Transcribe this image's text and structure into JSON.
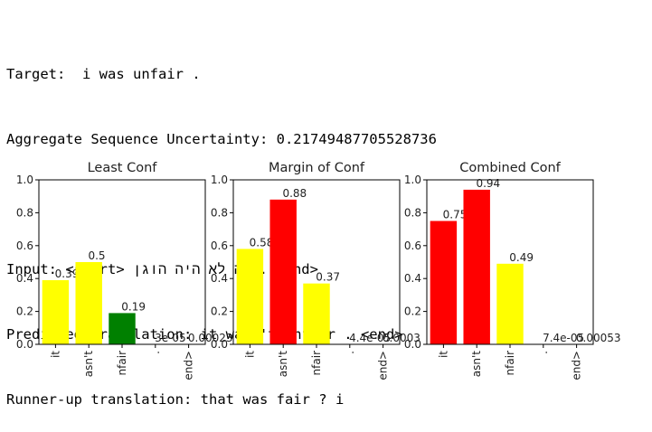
{
  "text_output": {
    "target_label": "Target:",
    "target": "i was unfair .",
    "uncertainty_label": "Aggregate Sequence Uncertainty:",
    "uncertainty": "0.21749487705528736",
    "input_label": "Input:",
    "input": "<start> זה לא היה הוגן . <end>",
    "predicted_label": "Predicted translation:",
    "predicted": "it wasn't unfair . <end>",
    "runnerup_label": "Runner-up translation:",
    "runnerup": "that was fair ? i"
  },
  "chart_data": [
    {
      "type": "bar",
      "title": "Least Conf",
      "categories": [
        "it",
        "asn't",
        "nfair",
        ".",
        "end>"
      ],
      "values": [
        0.39,
        0.5,
        0.19,
        3e-05,
        0.00023
      ],
      "value_labels": [
        "0.39",
        "0.5",
        "0.19",
        "3e-05",
        "0.00023"
      ],
      "colors": [
        "#ffff00",
        "#ffff00",
        "#008000",
        "#ffff00",
        "#ffff00"
      ],
      "ylim": [
        0,
        1.0
      ],
      "yticks": [
        "0.0",
        "0.2",
        "0.4",
        "0.6",
        "0.8",
        "1.0"
      ]
    },
    {
      "type": "bar",
      "title": "Margin of Conf",
      "categories": [
        "it",
        "asn't",
        "nfair",
        ".",
        "end>"
      ],
      "values": [
        0.58,
        0.88,
        0.37,
        4.4e-05,
        0.0003
      ],
      "value_labels": [
        "0.58",
        "0.88",
        "0.37",
        "4.4e-05",
        "0.0003"
      ],
      "colors": [
        "#ffff00",
        "#ff0000",
        "#ffff00",
        "#ffff00",
        "#ffff00"
      ],
      "ylim": [
        0,
        1.0
      ],
      "yticks": [
        "0.0",
        "0.2",
        "0.4",
        "0.6",
        "0.8",
        "1.0"
      ]
    },
    {
      "type": "bar",
      "title": "Combined Conf",
      "categories": [
        "it",
        "asn't",
        "nfair",
        ".",
        "end>"
      ],
      "values": [
        0.75,
        0.94,
        0.49,
        7.4e-05,
        0.00053
      ],
      "value_labels": [
        "0.75",
        "0.94",
        "0.49",
        "7.4e-05",
        "0.00053"
      ],
      "colors": [
        "#ff0000",
        "#ff0000",
        "#ffff00",
        "#ffff00",
        "#ffff00"
      ],
      "ylim": [
        0,
        1.0
      ],
      "yticks": [
        "0.0",
        "0.2",
        "0.4",
        "0.6",
        "0.8",
        "1.0"
      ]
    }
  ]
}
